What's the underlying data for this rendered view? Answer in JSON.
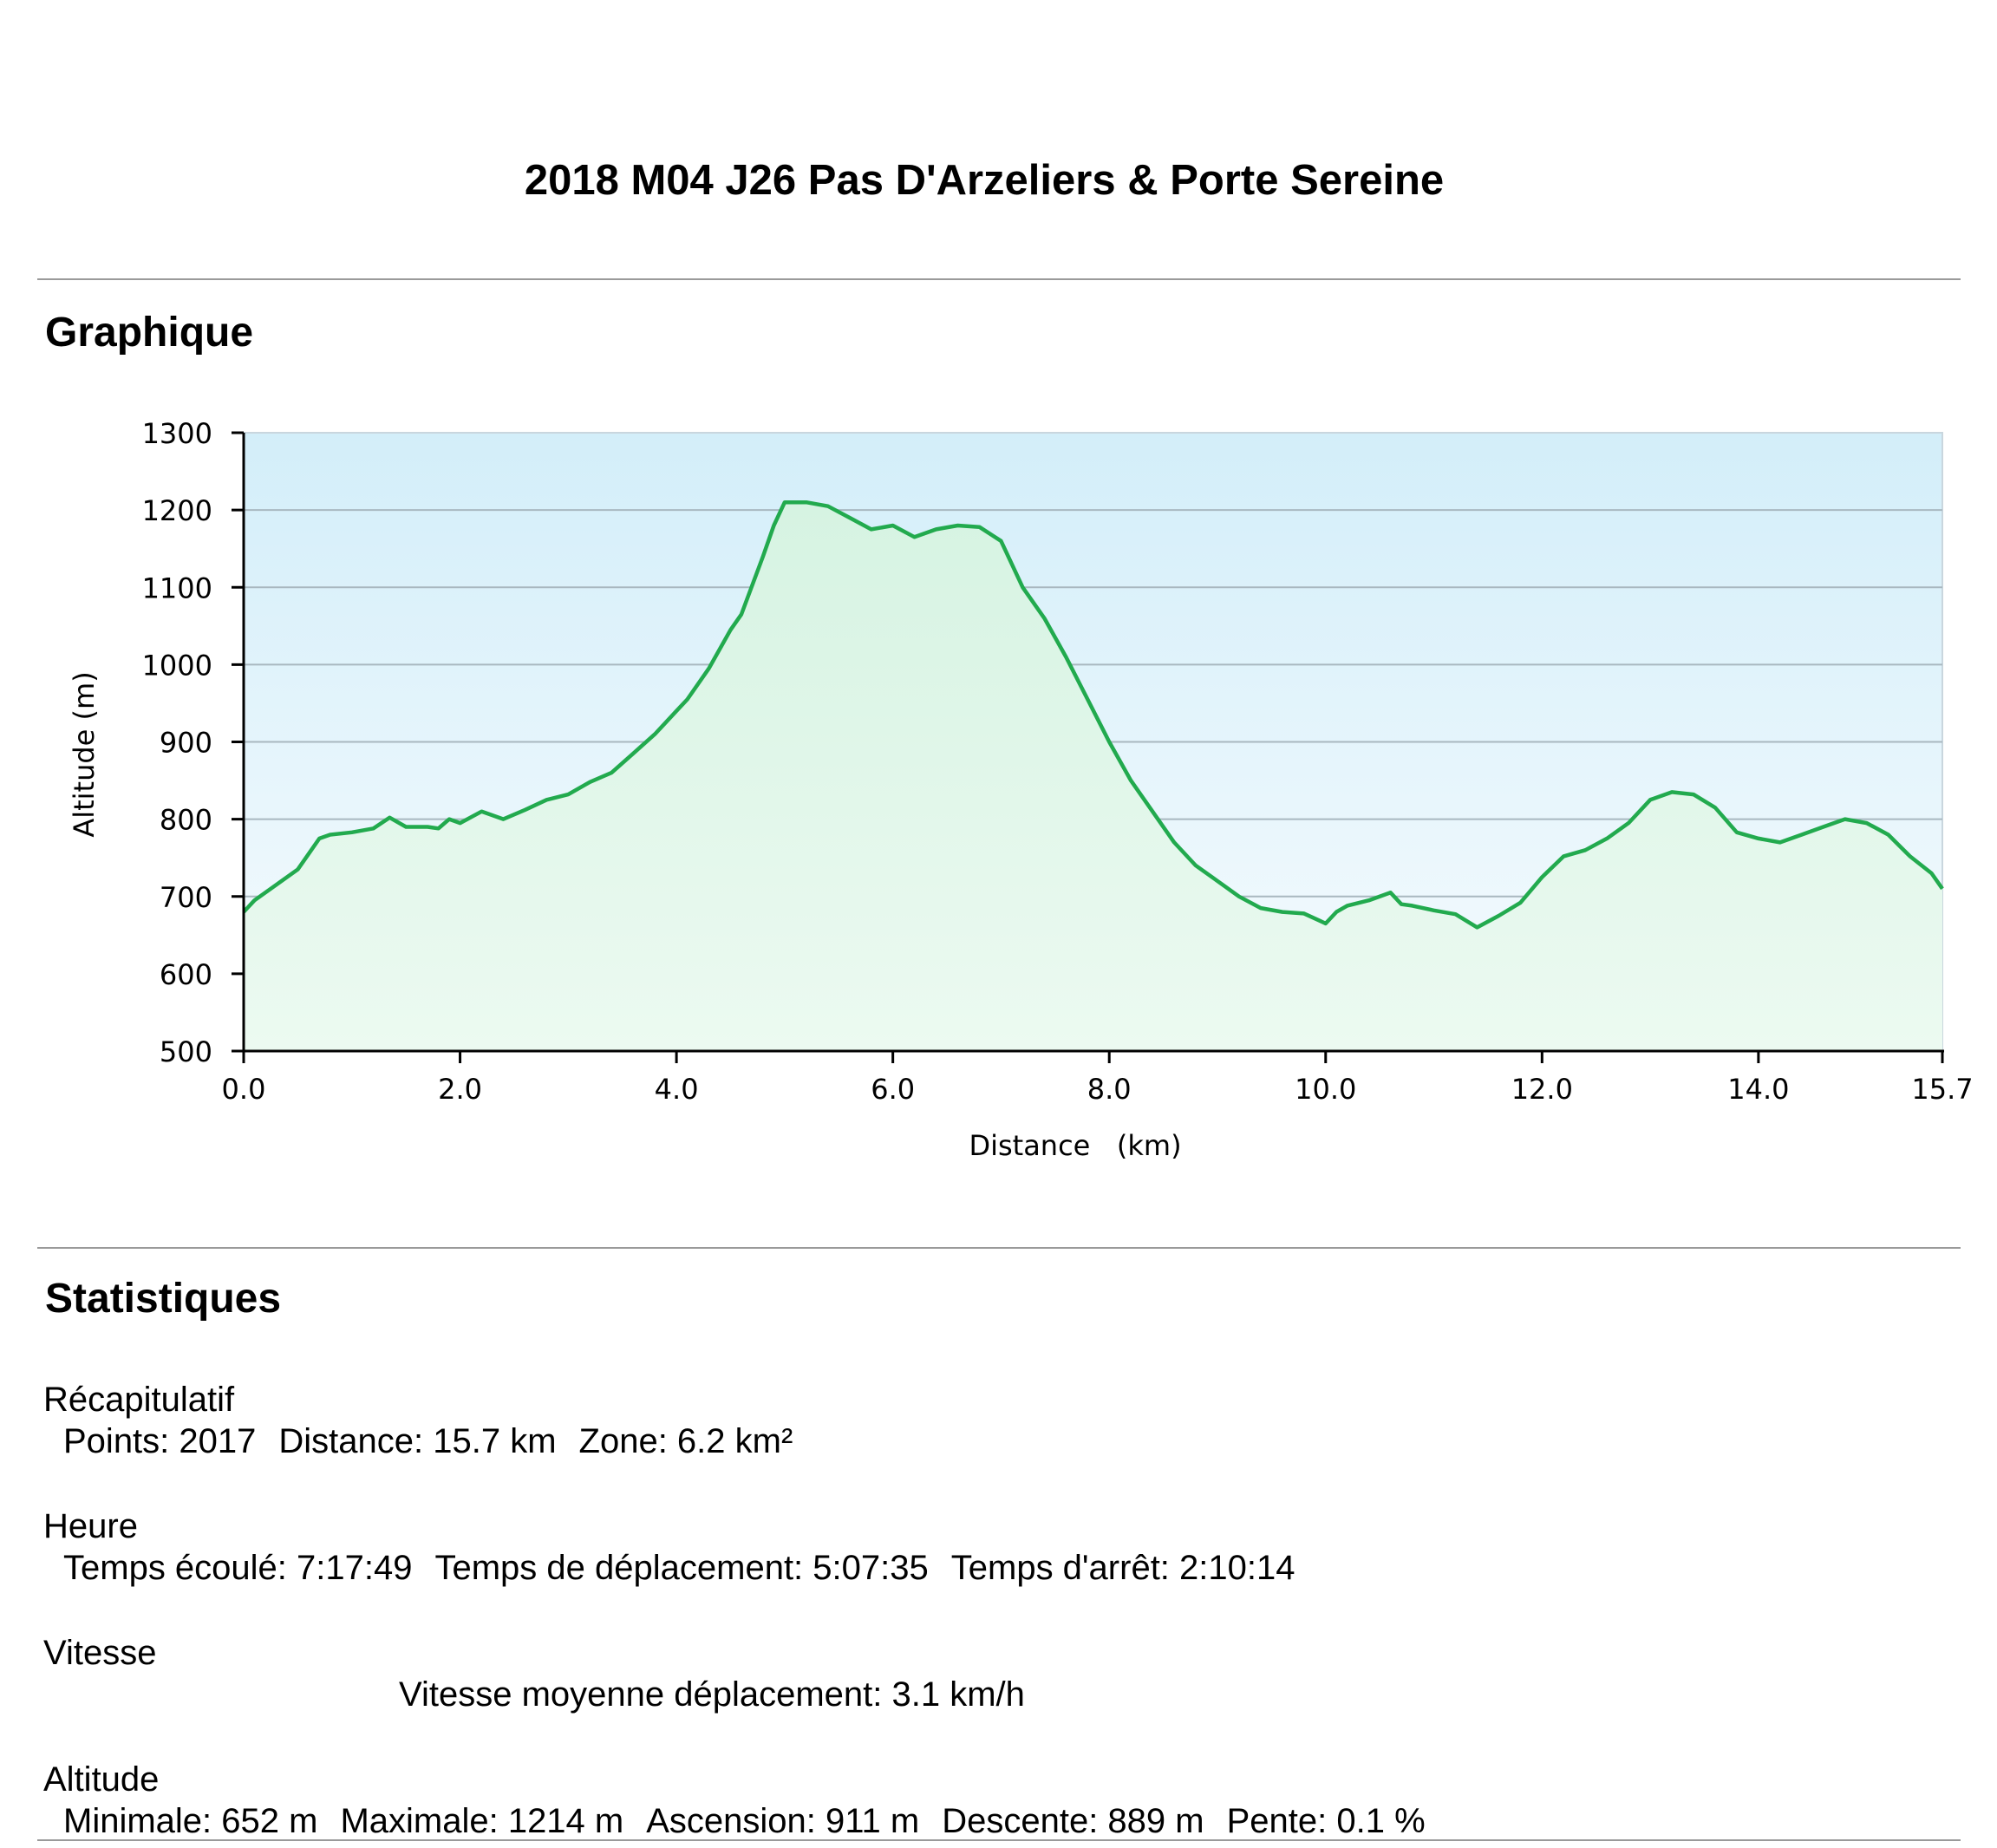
{
  "page": {
    "title": "2018 M04 J26 Pas D'Arzeliers & Porte Sereine"
  },
  "sections": {
    "graph_title": "Graphique",
    "stats_title": "Statistiques"
  },
  "stats": {
    "recap": {
      "heading": "Récapitulatif",
      "points": "Points: 2017",
      "distance": "Distance: 15.7 km",
      "zone": "Zone: 6.2 km²"
    },
    "heure": {
      "heading": "Heure",
      "elapsed": "Temps écoulé: 7:17:49",
      "moving": "Temps de déplacement: 5:07:35",
      "stopped": "Temps d'arrêt: 2:10:14"
    },
    "vitesse": {
      "heading": "Vitesse",
      "moving_avg": "Vitesse moyenne déplacement: 3.1 km/h"
    },
    "altitude": {
      "heading": "Altitude",
      "min": "Minimale: 652 m",
      "max": "Maximale: 1214 m",
      "ascent": "Ascension: 911 m",
      "descent": "Descente: 889 m",
      "slope": "Pente: 0.1 %"
    }
  },
  "chart_data": {
    "type": "area",
    "xlabel": "Distance   (km)",
    "ylabel": "Altitude (m)",
    "xlim": [
      0,
      15.7
    ],
    "ylim": [
      500,
      1300
    ],
    "x_ticks": [
      "0.0",
      "2.0",
      "4.0",
      "6.0",
      "8.0",
      "10.0",
      "12.0",
      "14.0",
      "15.7"
    ],
    "y_ticks": [
      "500",
      "600",
      "700",
      "800",
      "900",
      "1000",
      "1100",
      "1200",
      "1300"
    ],
    "grid": true,
    "line_color": "#22aa4e",
    "x": [
      0.0,
      0.1,
      0.3,
      0.5,
      0.6,
      0.7,
      0.8,
      1.0,
      1.2,
      1.35,
      1.5,
      1.7,
      1.8,
      1.9,
      2.0,
      2.2,
      2.4,
      2.6,
      2.8,
      3.0,
      3.2,
      3.4,
      3.6,
      3.8,
      4.0,
      4.1,
      4.3,
      4.5,
      4.6,
      4.8,
      4.9,
      5.0,
      5.2,
      5.4,
      5.6,
      5.8,
      6.0,
      6.2,
      6.4,
      6.6,
      6.8,
      7.0,
      7.2,
      7.4,
      7.6,
      7.8,
      8.0,
      8.2,
      8.4,
      8.6,
      8.8,
      9.0,
      9.2,
      9.4,
      9.6,
      9.8,
      10.0,
      10.1,
      10.2,
      10.4,
      10.6,
      10.7,
      10.8,
      11.0,
      11.2,
      11.4,
      11.6,
      11.8,
      12.0,
      12.2,
      12.4,
      12.6,
      12.8,
      13.0,
      13.2,
      13.4,
      13.6,
      13.8,
      14.0,
      14.2,
      14.4,
      14.6,
      14.8,
      15.0,
      15.2,
      15.4,
      15.6,
      15.7
    ],
    "y": [
      680,
      695,
      715,
      735,
      755,
      775,
      780,
      783,
      788,
      802,
      790,
      790,
      788,
      800,
      795,
      810,
      800,
      812,
      825,
      832,
      848,
      860,
      885,
      910,
      940,
      955,
      995,
      1045,
      1065,
      1140,
      1180,
      1210,
      1210,
      1205,
      1190,
      1175,
      1180,
      1165,
      1175,
      1180,
      1178,
      1160,
      1100,
      1060,
      1010,
      955,
      900,
      850,
      810,
      770,
      740,
      720,
      700,
      685,
      680,
      678,
      665,
      680,
      688,
      695,
      705,
      690,
      688,
      682,
      677,
      660,
      675,
      692,
      725,
      752,
      760,
      775,
      795,
      825,
      835,
      832,
      815,
      783,
      775,
      770,
      780,
      790,
      800,
      795,
      780,
      752,
      730,
      710
    ]
  }
}
